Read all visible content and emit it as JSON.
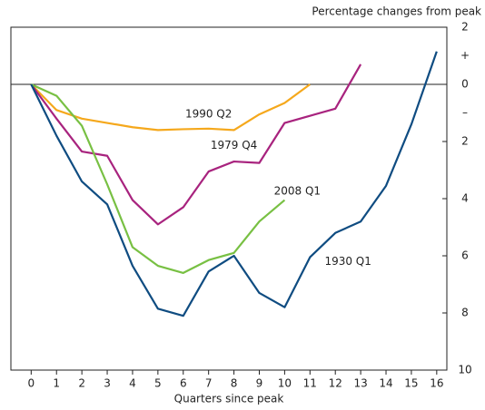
{
  "chart_data": {
    "type": "line",
    "subtitle": "Percentage changes from peak",
    "x_label": "Quarters since peak",
    "xlim": [
      -0.8,
      16.4
    ],
    "xticks": [
      0,
      1,
      2,
      3,
      4,
      5,
      6,
      7,
      8,
      9,
      10,
      11,
      12,
      13,
      14,
      15,
      16
    ],
    "ylim": [
      -10,
      2
    ],
    "yticks": [
      2,
      {
        "value": 1,
        "label": "+"
      },
      0,
      {
        "value": -1,
        "label": "–"
      },
      {
        "value": -2,
        "label": "2"
      },
      {
        "value": -4,
        "label": "4"
      },
      {
        "value": -6,
        "label": "6"
      },
      {
        "value": -8,
        "label": "8"
      },
      {
        "value": -10,
        "label": "10"
      }
    ],
    "series": [
      {
        "name": "1990 Q2",
        "color": "#f5a81c",
        "x": [
          0,
          1,
          2,
          3,
          4,
          5,
          6,
          7,
          8,
          9,
          10,
          11
        ],
        "values": [
          0,
          -0.9,
          -1.2,
          -1.35,
          -1.5,
          -1.6,
          -1.57,
          -1.55,
          -1.6,
          -1.05,
          -0.65,
          0
        ]
      },
      {
        "name": "1979 Q4",
        "color": "#a8237e",
        "x": [
          0,
          1,
          2,
          3,
          4,
          5,
          6,
          7,
          8,
          9,
          10,
          11,
          12,
          13
        ],
        "values": [
          0,
          -1.2,
          -2.35,
          -2.5,
          -4.05,
          -4.9,
          -4.3,
          -3.05,
          -2.7,
          -2.75,
          -1.35,
          -1.1,
          -0.85,
          0.7
        ]
      },
      {
        "name": "2008 Q1",
        "color": "#78c043",
        "x": [
          0,
          1,
          2,
          3,
          4,
          5,
          6,
          7,
          8,
          9,
          10
        ],
        "values": [
          0,
          -0.4,
          -1.45,
          -3.5,
          -5.7,
          -6.35,
          -6.6,
          -6.15,
          -5.9,
          -4.8,
          -4.05
        ]
      },
      {
        "name": "1930 Q1",
        "color": "#0f4c81",
        "x": [
          0,
          1,
          2,
          3,
          4,
          5,
          6,
          7,
          8,
          9,
          10,
          11,
          12,
          13,
          14,
          15,
          16
        ],
        "values": [
          0,
          -1.8,
          -3.4,
          -4.2,
          -6.35,
          -7.85,
          -8.1,
          -6.55,
          -6.0,
          -7.3,
          -7.8,
          -6.05,
          -5.2,
          -4.8,
          -3.55,
          -1.4,
          1.15
        ]
      }
    ]
  }
}
